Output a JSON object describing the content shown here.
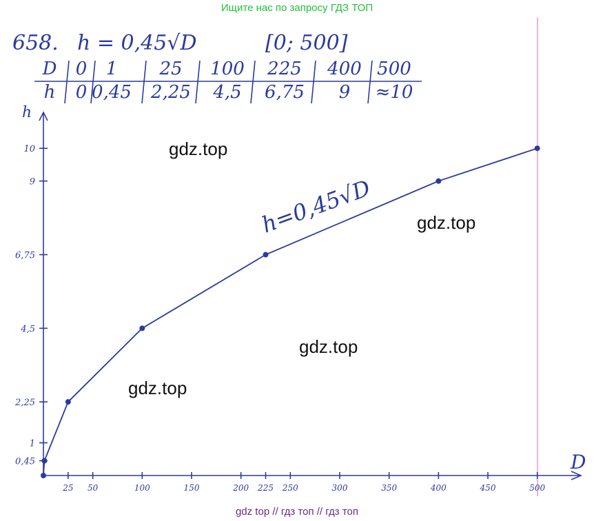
{
  "banner": "Ищите нас по запросу ГДЗ ТОП",
  "header": {
    "number": "658.",
    "formula": "h = 0,45√D",
    "interval": "[0; 500]"
  },
  "table": {
    "rows": [
      [
        "D",
        "0",
        "1",
        "25",
        "100",
        "225",
        "400",
        "500"
      ],
      [
        "h",
        "0",
        "0,45",
        "2,25",
        "4,5",
        "6,75",
        "9",
        "≈10"
      ]
    ]
  },
  "watermarks": [
    "gdz.top",
    "gdz.top",
    "gdz.top",
    "gdz.top"
  ],
  "footer": "gdz top  //  гдз топ  //  гдз топ",
  "chart_data": {
    "type": "line",
    "x_label": "D",
    "y_label": "h",
    "annotation": "h=0,45√D",
    "x": [
      0,
      1,
      25,
      100,
      225,
      400,
      500
    ],
    "values": [
      0,
      0.45,
      2.25,
      4.5,
      6.75,
      9,
      10
    ],
    "color": "#2b3a9e",
    "xlim": [
      0,
      540
    ],
    "ylim": [
      0,
      11.1
    ],
    "xticks": [
      25,
      50,
      100,
      150,
      200,
      225,
      250,
      300,
      350,
      400,
      450,
      500
    ],
    "yticks": [
      {
        "value": 0.45,
        "label": "0,45"
      },
      1,
      {
        "value": 2.25,
        "label": "2,25"
      },
      {
        "value": 4.5,
        "label": "4,5"
      },
      {
        "value": 6.75,
        "label": "6,75"
      },
      9,
      10
    ],
    "grid": false
  }
}
